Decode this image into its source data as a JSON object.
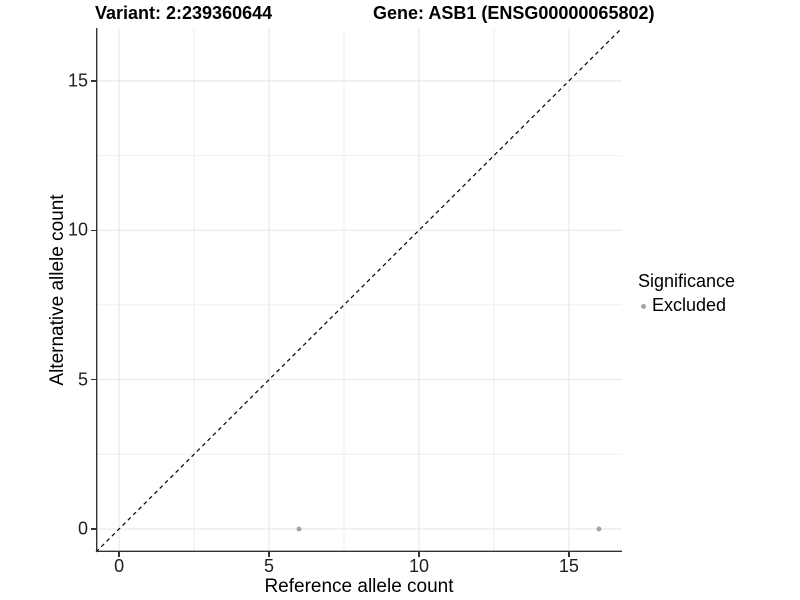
{
  "header": {
    "variant_title": "Variant: 2:239360644",
    "gene_title": "Gene: ASB1 (ENSG00000065802)"
  },
  "legend": {
    "title": "Significance",
    "items": [
      {
        "label": "Excluded",
        "color": "#a5a5a5"
      }
    ]
  },
  "colors": {
    "background": "#ffffff",
    "grid_major": "#e4e4e4",
    "grid_minor": "#efefef",
    "axis_line": "#333333",
    "tick_label": "#1f1f1f",
    "title_text": "#000000",
    "identity_line": "#000000"
  },
  "chart_data": {
    "type": "scatter",
    "title": "Variant: 2:239360644    Gene: ASB1 (ENSG00000065802)",
    "xlabel": "Reference allele count",
    "ylabel": "Alternative allele count",
    "xlim": [
      -0.77,
      16.77
    ],
    "ylim": [
      -0.77,
      16.77
    ],
    "x_major_ticks": [
      0,
      5,
      10,
      15
    ],
    "y_major_ticks": [
      0,
      5,
      10,
      15
    ],
    "x_minor_ticks": [
      2.5,
      7.5,
      12.5
    ],
    "y_minor_ticks": [
      2.5,
      7.5,
      12.5
    ],
    "grid": true,
    "legend_position": "right",
    "identity_line": {
      "style": "dashed",
      "from": [
        -0.77,
        -0.77
      ],
      "to": [
        16.77,
        16.77
      ]
    },
    "series": [
      {
        "name": "Excluded",
        "color": "#a5a5a5",
        "point_radius": 2.5,
        "points": [
          {
            "x": 6,
            "y": 0
          },
          {
            "x": 16,
            "y": 0
          }
        ]
      }
    ]
  }
}
